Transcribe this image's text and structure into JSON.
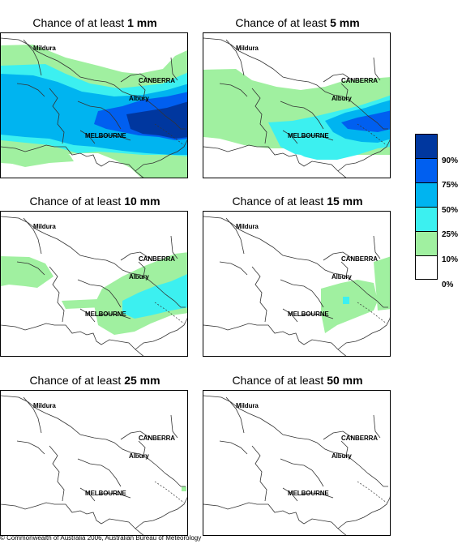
{
  "panels": [
    {
      "title_prefix": "Chance of at least ",
      "title_amount": "1 mm",
      "level": "1mm"
    },
    {
      "title_prefix": "Chance of at least ",
      "title_amount": "5 mm",
      "level": "5mm"
    },
    {
      "title_prefix": "Chance of at least ",
      "title_amount": "10 mm",
      "level": "10mm"
    },
    {
      "title_prefix": "Chance of at least ",
      "title_amount": "15 mm",
      "level": "15mm"
    },
    {
      "title_prefix": "Chance of at least ",
      "title_amount": "25 mm",
      "level": "25mm"
    },
    {
      "title_prefix": "Chance of at least ",
      "title_amount": "50 mm",
      "level": "50mm"
    }
  ],
  "places": {
    "mildura": "Mildura",
    "canberra": "CANBERRA",
    "albury": "Albury",
    "melbourne": "MELBOURNE"
  },
  "legend": {
    "labels": [
      "90%",
      "75%",
      "50%",
      "25%",
      "10%",
      "0%"
    ],
    "colors": [
      "#00379f",
      "#005ff0",
      "#00b4f0",
      "#3cf0f0",
      "#a0f0a0",
      "#ffffff"
    ]
  },
  "copyright": "© Commonwealth of Australia 2006, Australian Bureau of Meteorology"
}
